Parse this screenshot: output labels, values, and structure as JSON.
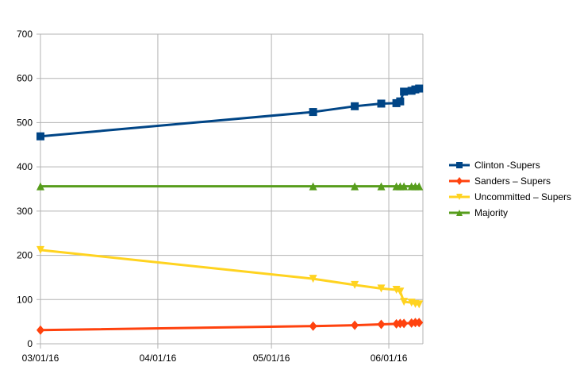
{
  "chart_data": {
    "type": "line",
    "x_tick_labels": [
      "03/01/16",
      "04/01/16",
      "05/01/16",
      "06/01/16"
    ],
    "x_ticks": [
      "2016-03-01",
      "2016-04-01",
      "2016-05-01",
      "2016-06-01"
    ],
    "xlim": [
      "2016-03-01",
      "2016-06-10"
    ],
    "y_tick_labels": [
      "0",
      "100",
      "200",
      "300",
      "400",
      "500",
      "600",
      "700"
    ],
    "ylim": [
      0,
      700
    ],
    "grid": true,
    "legend_position": "right",
    "series": [
      {
        "name": "Clinton -Supers",
        "color": "#004586",
        "marker": "square",
        "x": [
          "2016-03-01",
          "2016-05-12",
          "2016-05-23",
          "2016-05-30",
          "2016-06-03",
          "2016-06-04",
          "2016-06-05",
          "2016-06-07",
          "2016-06-08",
          "2016-06-09"
        ],
        "values": [
          469,
          524,
          537,
          543,
          544,
          548,
          570,
          572,
          575,
          577
        ]
      },
      {
        "name": "Sanders – Supers",
        "color": "#ff420e",
        "marker": "diamond",
        "x": [
          "2016-03-01",
          "2016-05-12",
          "2016-05-23",
          "2016-05-30",
          "2016-06-03",
          "2016-06-04",
          "2016-06-05",
          "2016-06-07",
          "2016-06-08",
          "2016-06-09"
        ],
        "values": [
          31,
          40,
          42,
          44,
          45,
          46,
          46,
          47,
          48,
          48
        ]
      },
      {
        "name": "Uncommitted – Supers",
        "color": "#ffd320",
        "marker": "triangle-down",
        "x": [
          "2016-03-01",
          "2016-05-12",
          "2016-05-23",
          "2016-05-30",
          "2016-06-03",
          "2016-06-04",
          "2016-06-05",
          "2016-06-07",
          "2016-06-08",
          "2016-06-09"
        ],
        "values": [
          212,
          147,
          133,
          125,
          122,
          118,
          95,
          93,
          90,
          89
        ]
      },
      {
        "name": "Majority",
        "color": "#579d1c",
        "marker": "triangle-up",
        "x": [
          "2016-03-01",
          "2016-05-12",
          "2016-05-23",
          "2016-05-30",
          "2016-06-03",
          "2016-06-04",
          "2016-06-05",
          "2016-06-07",
          "2016-06-08",
          "2016-06-09"
        ],
        "values": [
          356,
          356,
          356,
          356,
          356,
          356,
          356,
          356,
          356,
          356
        ]
      }
    ]
  }
}
